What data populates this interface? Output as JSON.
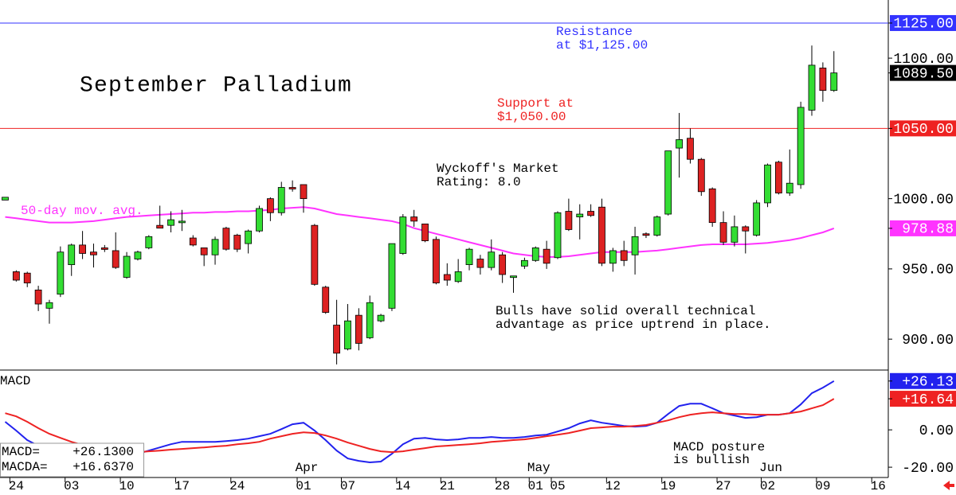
{
  "chart_data": [
    {
      "type": "candlestick",
      "title": "September Palladium",
      "categories": [
        null,
        "24",
        null,
        null,
        null,
        null,
        "03",
        null,
        null,
        null,
        null,
        "10",
        null,
        null,
        null,
        null,
        "17",
        null,
        null,
        null,
        null,
        "24",
        null,
        null,
        null,
        null,
        null,
        "01",
        null,
        null,
        null,
        "07",
        null,
        null,
        null,
        null,
        "14",
        null,
        null,
        null,
        "21",
        null,
        null,
        null,
        null,
        "28",
        null,
        null,
        "01",
        null,
        "05",
        null,
        null,
        null,
        null,
        "12",
        null,
        null,
        null,
        null,
        "19",
        null,
        null,
        null,
        null,
        "27",
        null,
        null,
        null,
        "02",
        null,
        null,
        null,
        null,
        "09",
        null,
        null,
        null,
        null,
        "16"
      ],
      "months": [
        null,
        null,
        null,
        null,
        null,
        null,
        null,
        null,
        null,
        null,
        null,
        null,
        null,
        null,
        null,
        null,
        null,
        null,
        null,
        null,
        null,
        null,
        null,
        null,
        null,
        null,
        null,
        "Apr",
        null,
        null,
        null,
        null,
        null,
        null,
        null,
        null,
        null,
        null,
        null,
        null,
        null,
        null,
        null,
        null,
        null,
        null,
        null,
        null,
        "May",
        null,
        null,
        null,
        null,
        null,
        null,
        null,
        null,
        null,
        null,
        null,
        null,
        null,
        null,
        null,
        null,
        null,
        null,
        null,
        null,
        "Jun",
        null,
        null,
        null,
        null,
        null,
        null,
        null,
        null,
        null,
        null
      ],
      "open": [
        999,
        948,
        947,
        935,
        922,
        932,
        953,
        967,
        962,
        965,
        963,
        944,
        957,
        965,
        981,
        981,
        983,
        972,
        965,
        960,
        979,
        974,
        968,
        977,
        1000,
        990,
        1008,
        1010,
        981,
        937,
        910,
        893,
        917,
        901,
        913,
        922,
        961,
        987,
        982,
        971,
        946,
        941,
        953,
        957,
        951,
        960,
        944,
        952,
        956,
        964,
        958,
        991,
        987,
        991,
        994,
        954,
        963,
        960,
        975,
        974,
        989,
        1036,
        1043,
        1028,
        1007,
        983,
        969,
        980,
        974,
        997,
        1026,
        1004,
        1010,
        1063,
        1093,
        1077,
        null,
        null,
        null,
        null
      ],
      "high": [
        1001,
        949,
        948,
        938,
        928,
        966,
        968,
        977,
        968,
        967,
        976,
        962,
        963,
        974,
        995,
        991,
        992,
        974,
        965,
        973,
        980,
        975,
        978,
        995,
        1001,
        1012,
        1013,
        1010,
        982,
        938,
        928,
        925,
        922,
        931,
        918,
        968,
        989,
        992,
        982,
        973,
        954,
        957,
        965,
        960,
        971,
        962,
        945,
        958,
        966,
        970,
        991,
        1000,
        996,
        996,
        1000,
        965,
        970,
        980,
        976,
        988,
        1034,
        1061,
        1050,
        1029,
        1008,
        991,
        988,
        981,
        999,
        1025,
        1027,
        1035,
        1069,
        1109,
        1097,
        1105,
        null,
        null,
        null,
        null
      ],
      "low": [
        999,
        941,
        937,
        920,
        911,
        930,
        945,
        957,
        951,
        962,
        950,
        943,
        956,
        964,
        979,
        976,
        977,
        966,
        952,
        953,
        963,
        962,
        961,
        976,
        984,
        988,
        1005,
        990,
        938,
        918,
        882,
        892,
        892,
        900,
        912,
        920,
        960,
        980,
        969,
        939,
        938,
        940,
        949,
        946,
        949,
        940,
        933,
        950,
        955,
        950,
        957,
        977,
        971,
        987,
        952,
        948,
        952,
        946,
        972,
        973,
        988,
        1015,
        1025,
        1002,
        980,
        967,
        966,
        961,
        973,
        994,
        1003,
        1002,
        1007,
        1059,
        1069,
        1076,
        null,
        null,
        null,
        null
      ],
      "close": [
        1001,
        942,
        940,
        925,
        926,
        962,
        967,
        961,
        960,
        964,
        951,
        959,
        962,
        973,
        979,
        985,
        984,
        967,
        960,
        971,
        964,
        964,
        977,
        993,
        990,
        1008,
        1007,
        1000,
        939,
        919,
        890,
        913,
        897,
        926,
        917,
        968,
        987,
        984,
        970,
        940,
        942,
        948,
        964,
        951,
        962,
        946,
        945,
        956,
        965,
        954,
        990,
        978,
        989,
        988,
        954,
        963,
        956,
        973,
        974,
        987,
        1034,
        1042,
        1028,
        1005,
        983,
        969,
        980,
        977,
        997,
        1024,
        1004,
        1011,
        1065,
        1095,
        1077,
        1089.5,
        null,
        null,
        null,
        null
      ],
      "close_last_label": "1089.50",
      "up_color": "#33dd33",
      "down_color": "#dd2222",
      "series": [
        {
          "name": "50-day mov. avg.",
          "color": "#ff33ff",
          "last_label": "978.88",
          "values": [
            987,
            986,
            985,
            984,
            983,
            983,
            983,
            983.5,
            984,
            985,
            986,
            987,
            987.5,
            988,
            988.5,
            989,
            989.5,
            990,
            990,
            990.5,
            990.5,
            991,
            991,
            991.5,
            992,
            993,
            993.5,
            994,
            993,
            991,
            989,
            988,
            987,
            986,
            985,
            984,
            982,
            979,
            977,
            975,
            973,
            971,
            969,
            967,
            965,
            963,
            961,
            960,
            959,
            958.5,
            958.5,
            959,
            960,
            961,
            962,
            962,
            962,
            962,
            962.5,
            963,
            964,
            965,
            966,
            967,
            967.5,
            967.5,
            967.5,
            967.5,
            968,
            968.5,
            969.5,
            970.5,
            972,
            974,
            976,
            978.88,
            null,
            null,
            null,
            null
          ]
        }
      ],
      "hlines": [
        {
          "value": 1125,
          "label": "1125.00",
          "color": "#3333ff"
        },
        {
          "value": 1050,
          "label": "1050.00",
          "color": "#ee2222"
        }
      ],
      "ylim": [
        878,
        1141.4
      ],
      "yticks": [
        {
          "value": 1100,
          "label": "1100.00"
        },
        {
          "value": 1000,
          "label": "1000.00"
        },
        {
          "value": 950,
          "label": "950.00"
        },
        {
          "value": 900,
          "label": "900.00"
        }
      ],
      "annotations": [
        {
          "lines": [
            "Resistance",
            "at $1,125.00"
          ],
          "color": "#3333ff"
        },
        {
          "lines": [
            "Support at",
            "$1,050.00"
          ],
          "color": "#ee2222"
        },
        {
          "lines": [
            "Wyckoff's Market",
            "Rating: 8.0"
          ],
          "color": "#000000"
        },
        {
          "lines": [
            "Bulls have solid overall technical",
            "advantage as price uptrend in place."
          ],
          "color": "#000000"
        }
      ]
    },
    {
      "type": "line",
      "title": "MACD",
      "series": [
        {
          "name": "MACD=",
          "readout": "+26.1300",
          "last_label": "+26.13",
          "color": "#2222ee",
          "values": [
            4.3,
            -0.4,
            -5.5,
            -8.5,
            -10.6,
            -11.9,
            -12.8,
            -13.2,
            -13.2,
            -13.2,
            -13.2,
            -13.2,
            -12.8,
            -11.1,
            -9.4,
            -7.7,
            -6.4,
            -6.4,
            -6.4,
            -6.4,
            -6.0,
            -5.5,
            -4.7,
            -3.4,
            -2.1,
            0.4,
            3.0,
            3.8,
            -0.4,
            -5.5,
            -11.1,
            -15.3,
            -16.6,
            -17.4,
            -17.0,
            -12.8,
            -7.7,
            -4.7,
            -4.3,
            -5.1,
            -5.5,
            -5.1,
            -4.3,
            -4.3,
            -3.8,
            -4.3,
            -4.3,
            -3.8,
            -3.0,
            -2.6,
            -0.9,
            0.9,
            3.4,
            5.1,
            3.8,
            3.0,
            2.1,
            1.7,
            2.1,
            3.8,
            8.5,
            12.8,
            14.0,
            14.0,
            11.5,
            8.9,
            7.7,
            6.4,
            6.8,
            8.1,
            8.1,
            8.9,
            13.6,
            19.6,
            22.6,
            26.13,
            null,
            null,
            null,
            null
          ]
        },
        {
          "name": "MACDA=",
          "readout": "+16.6370",
          "last_label": "+16.64",
          "color": "#ee2222",
          "values": [
            8.9,
            7.2,
            4.3,
            0.9,
            -2.1,
            -4.3,
            -6.4,
            -8.1,
            -9.4,
            -10.6,
            -11.5,
            -11.9,
            -11.9,
            -11.5,
            -11.1,
            -10.6,
            -10.2,
            -9.8,
            -9.4,
            -8.9,
            -8.5,
            -7.7,
            -7.2,
            -6.4,
            -4.7,
            -3.4,
            -2.1,
            -1.3,
            -1.7,
            -3.0,
            -4.7,
            -6.8,
            -8.5,
            -10.2,
            -11.5,
            -11.9,
            -11.5,
            -10.6,
            -9.8,
            -8.9,
            -8.5,
            -8.1,
            -7.7,
            -7.2,
            -6.4,
            -6.0,
            -5.5,
            -5.1,
            -4.3,
            -3.4,
            -2.6,
            -1.7,
            -0.4,
            0.9,
            1.3,
            1.7,
            1.7,
            2.1,
            2.6,
            3.8,
            5.1,
            6.8,
            8.1,
            8.9,
            9.4,
            8.9,
            8.5,
            8.5,
            8.1,
            8.1,
            8.1,
            8.9,
            9.8,
            11.5,
            13.2,
            16.637,
            null,
            null,
            null,
            null
          ]
        }
      ],
      "ylim": [
        -25.5,
        32
      ],
      "yticks": [
        {
          "value": 0,
          "label": "0.00"
        },
        {
          "value": -20,
          "label": "-20.00"
        }
      ],
      "annotations": [
        {
          "lines": [
            "MACD posture",
            "is bullish"
          ],
          "color": "#000000"
        }
      ]
    }
  ]
}
